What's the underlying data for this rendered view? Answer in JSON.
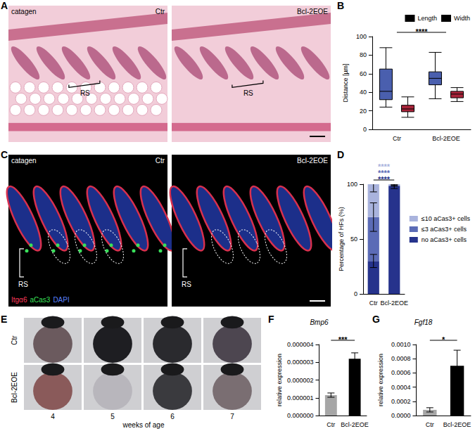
{
  "image_panels": {
    "A": {
      "panel": "A",
      "stage": "catagen",
      "images": [
        {
          "name": "Ctr",
          "annotation": "RS"
        },
        {
          "name": "Bcl-2EOE",
          "annotation": "RS"
        }
      ]
    },
    "C": {
      "panel": "C",
      "stage": "catagen",
      "images": [
        {
          "name": "Ctr",
          "annotation": "RS"
        },
        {
          "name": "Bcl-2EOE",
          "annotation": "RS"
        }
      ],
      "stains": [
        {
          "text": "Itgα6",
          "color": "#ff3b5c"
        },
        {
          "text": "aCas3",
          "color": "#39e05a"
        },
        {
          "text": "DAPI",
          "color": "#5a82ff"
        }
      ]
    },
    "E": {
      "panel": "E",
      "rows": [
        "Ctr",
        "Bcl-2EOE"
      ],
      "columns": [
        "4",
        "5",
        "6",
        "7"
      ],
      "x_label": "weeks of age"
    }
  },
  "chart_data": [
    {
      "panel": "B",
      "type": "boxplot",
      "categories": [
        "Ctr",
        "Bcl-2EOE"
      ],
      "y_label": "Distance [µm]",
      "ylim": [
        0,
        100
      ],
      "yticks": [
        0,
        20,
        40,
        60,
        80,
        100
      ],
      "legend": "upper right",
      "series": [
        {
          "name": "Length",
          "color": "#4a5fae",
          "values": [
            [
              24,
              32,
              41,
              65,
              88
            ],
            [
              33,
              48,
              55,
              62,
              83
            ]
          ]
        },
        {
          "name": "Width",
          "color": "#a8243a",
          "values": [
            [
              13,
              19,
              22,
              26,
              35
            ],
            [
              30,
              34,
              38,
              41,
              45
            ]
          ]
        }
      ],
      "annotations": [
        {
          "text": "****",
          "between": [
            "Ctr",
            "Bcl-2EOE"
          ]
        }
      ]
    },
    {
      "panel": "D",
      "type": "bar",
      "stacked": true,
      "categories": [
        "Ctr",
        "Bcl-2EOE"
      ],
      "y_label": "Percentage of HFs (%)",
      "ylim": [
        0,
        100
      ],
      "yticks": [
        0,
        50,
        100
      ],
      "legend": "right",
      "series": [
        {
          "name": "no aCas3+ cells",
          "color": "#26338c",
          "values": [
            30,
            98
          ],
          "errors": [
            6,
            2
          ],
          "significance": "****"
        },
        {
          "name": "≤3 aCas3+ cells",
          "color": "#5b6bb6",
          "values": [
            40,
            1
          ],
          "errors": [
            13,
            1
          ],
          "significance": "****"
        },
        {
          "name": "≤10 aCas3+ cells",
          "color": "#a9b3dd",
          "values": [
            30,
            1
          ],
          "errors": [
            7,
            1
          ],
          "significance": "****"
        }
      ]
    },
    {
      "panel": "F",
      "type": "bar",
      "title": "Bmp6",
      "categories": [
        "Ctr",
        "Bcl-2EOE"
      ],
      "values": [
        1.15e-06,
        3.2e-06
      ],
      "errors": [
        1.2e-07,
        3.3e-07
      ],
      "colors": [
        "#a6a6a6",
        "#000000"
      ],
      "y_label": "relative expression",
      "ylim": [
        0,
        4e-06
      ],
      "yticks": [
        {
          "value": 0,
          "label": "0.000000"
        },
        {
          "value": 1e-06,
          "label": "0.000001"
        },
        {
          "value": 2e-06,
          "label": "0.000002"
        },
        {
          "value": 3e-06,
          "label": "0.000003"
        },
        {
          "value": 4e-06,
          "label": "0.000004"
        }
      ],
      "annotations": [
        {
          "text": "***",
          "between": [
            "Ctr",
            "Bcl-2EOE"
          ]
        }
      ]
    },
    {
      "panel": "G",
      "type": "bar",
      "title": "Fgf18",
      "categories": [
        "Ctr",
        "Bcl-2EOE"
      ],
      "values": [
        8e-05,
        0.0007
      ],
      "errors": [
        3e-05,
        0.00022
      ],
      "colors": [
        "#a6a6a6",
        "#000000"
      ],
      "y_label": "relative expression",
      "ylim": [
        0,
        0.001
      ],
      "yticks": [
        {
          "value": 0,
          "label": "0.0000"
        },
        {
          "value": 0.0002,
          "label": "0.0002"
        },
        {
          "value": 0.0004,
          "label": "0.0004"
        },
        {
          "value": 0.0006,
          "label": "0.0006"
        },
        {
          "value": 0.0008,
          "label": "0.0008"
        },
        {
          "value": 0.001,
          "label": "0.0010"
        }
      ],
      "annotations": [
        {
          "text": "*",
          "between": [
            "Ctr",
            "Bcl-2EOE"
          ]
        }
      ]
    }
  ]
}
